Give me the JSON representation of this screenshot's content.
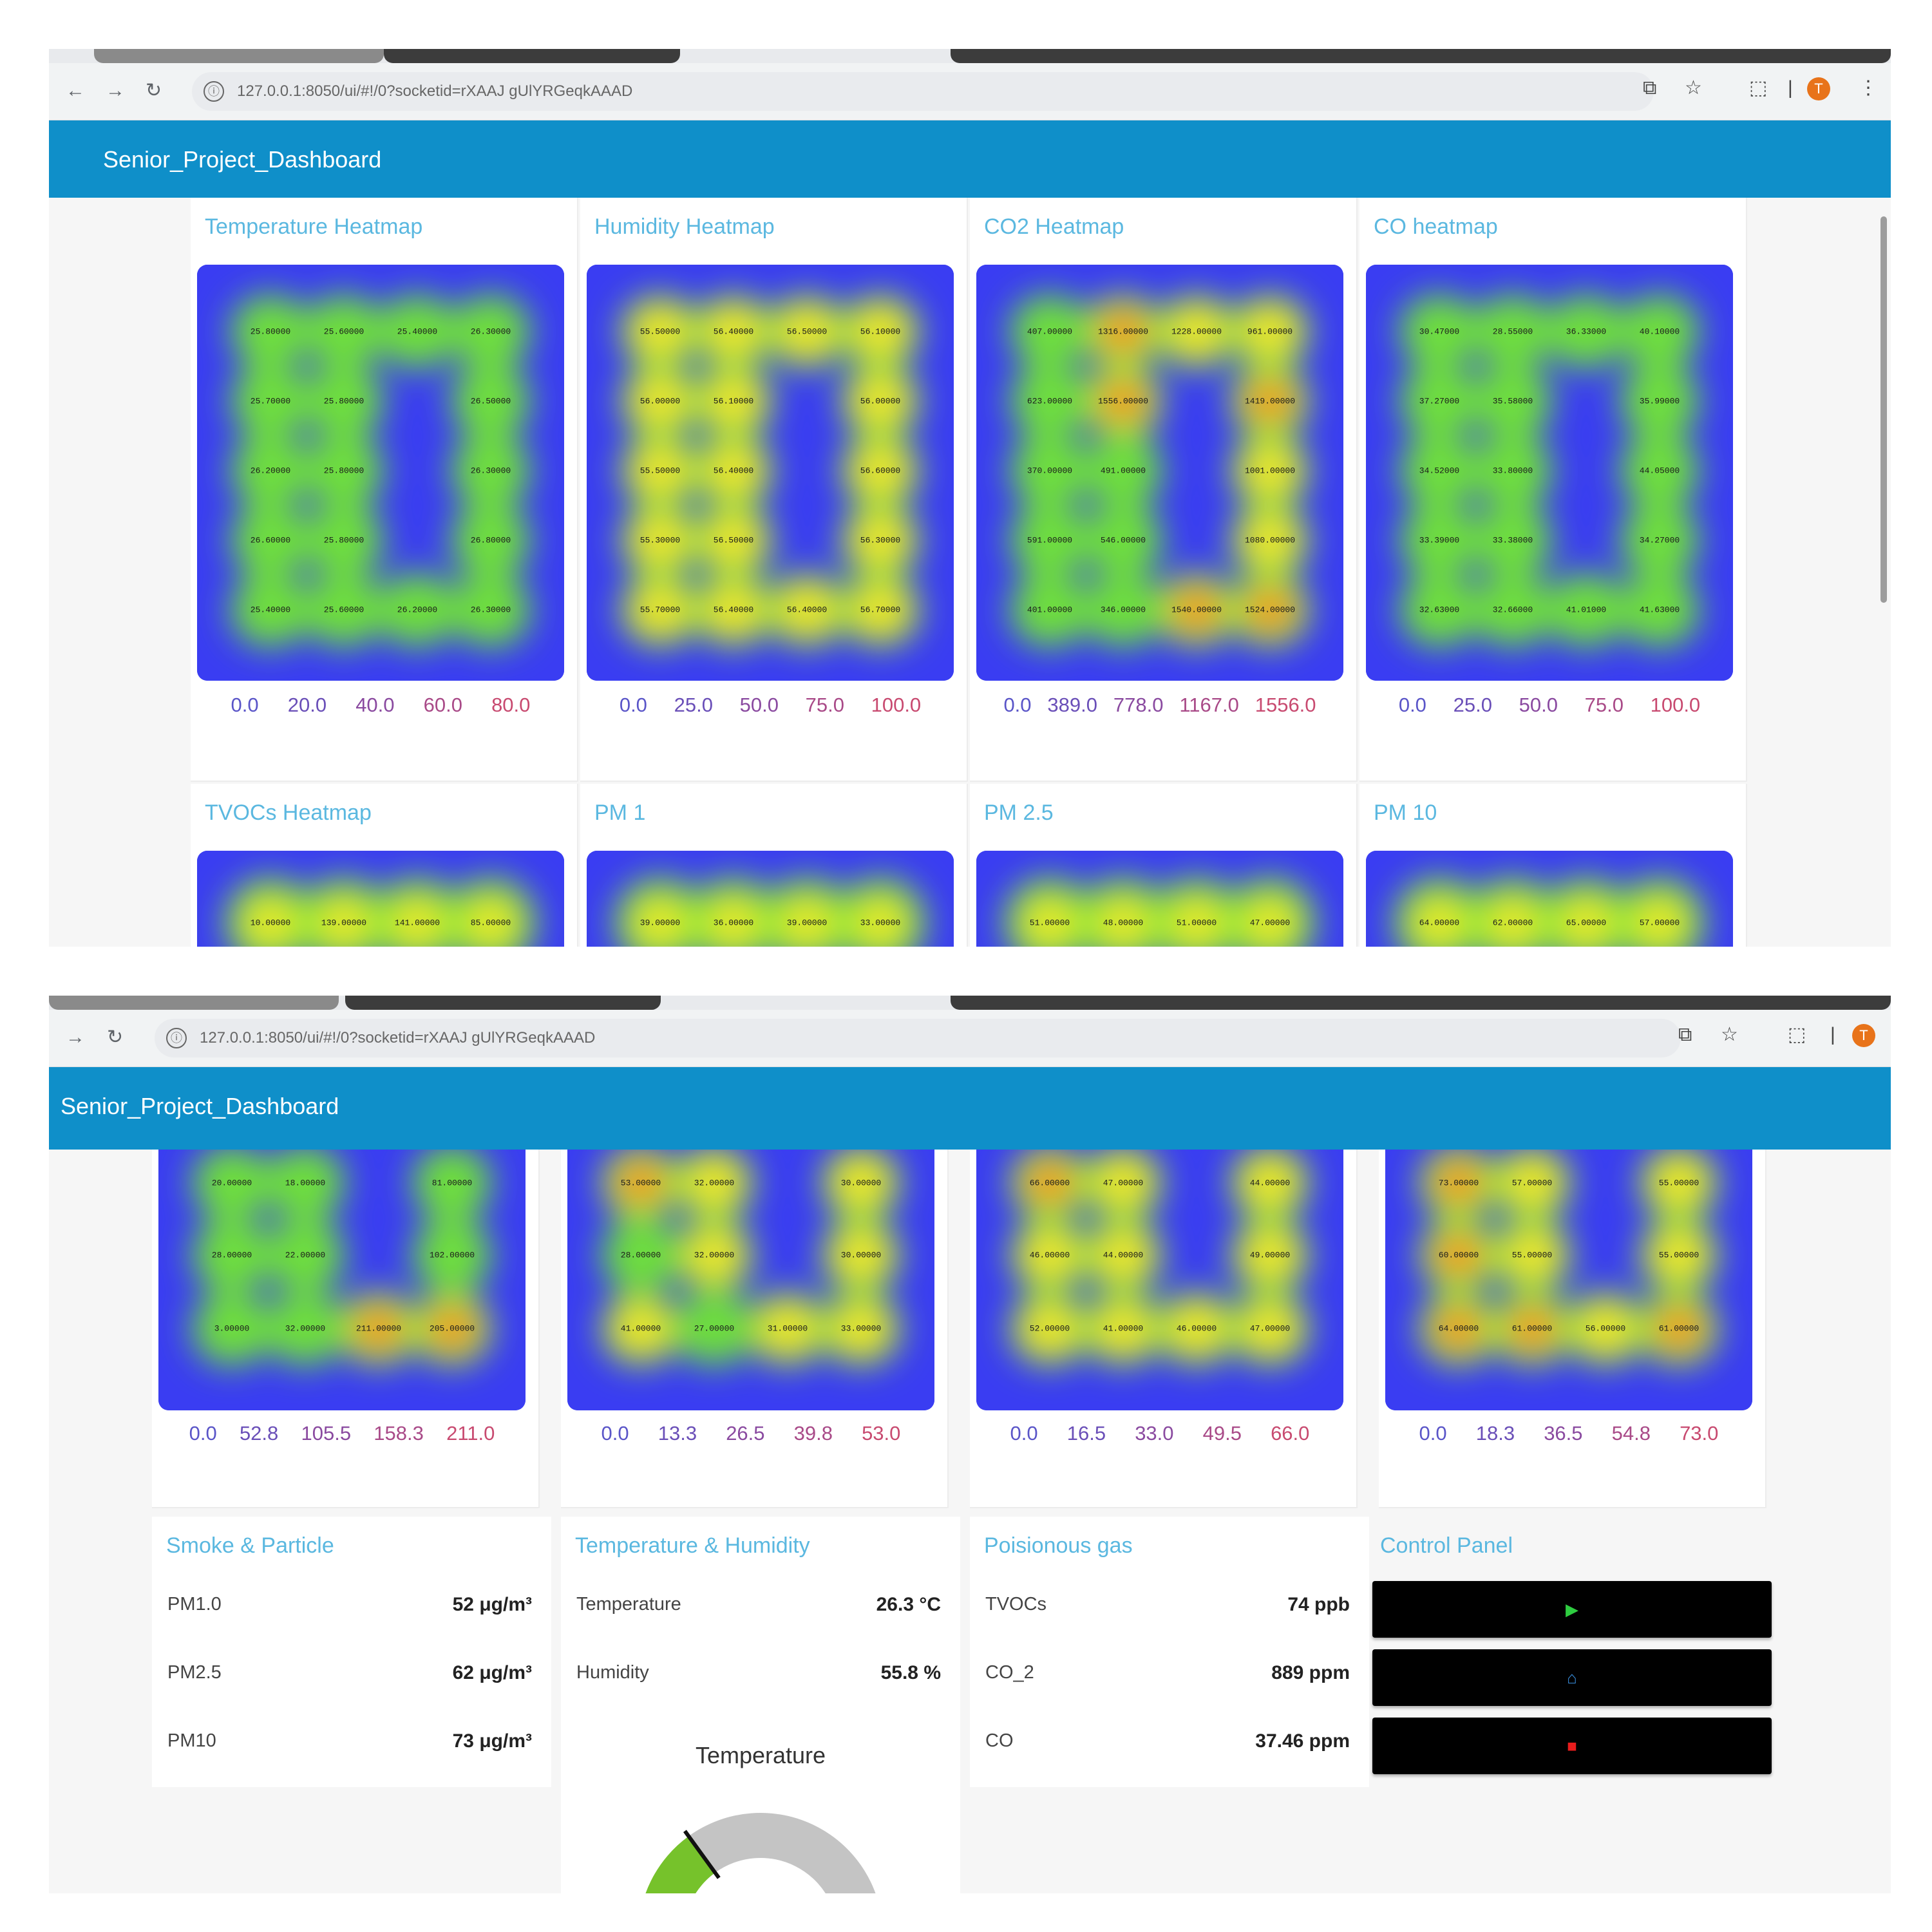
{
  "colors": {
    "appbar": "#0f8fc9",
    "card_title": "#5bb8e0",
    "heat_low": "#3a3df2",
    "heat_mid": "#7dea2f",
    "heat_high": "#f03a22",
    "play": "#2ecc40",
    "home": "#3a90e0",
    "stop": "#e81c1c",
    "gauge_fill": "#76c22b",
    "gauge_track": "#c4c4c4"
  },
  "browser": {
    "url_top": "127.0.0.1:8050/ui/#!/0?socketid=rXAAJ gUlYRGeqkAAAD",
    "url_bottom": "127.0.0.1:8050/ui/#!/0?socketid=rXAAJ gUlYRGeqkAAAD",
    "back_icon": "←",
    "forward_icon": "→",
    "reload_icon": "↻",
    "info_icon": "ⓘ",
    "cast_icon": "⧉",
    "star_icon": "☆",
    "extensions_icon": "⬚",
    "divider": "|",
    "menu_icon": "⋮",
    "profile_letter": "T"
  },
  "app": {
    "title": "Senior_Project_Dashboard"
  },
  "heatmaps_top": [
    {
      "title": "Temperature Heatmap",
      "scale": [
        "0.0",
        "20.0",
        "40.0",
        "60.0",
        "80.0"
      ],
      "labels": [
        [
          "25.80000",
          "25.60000",
          "25.40000",
          "26.30000"
        ],
        [
          "25.70000",
          "25.80000",
          "",
          "26.50000"
        ],
        [
          "26.20000",
          "25.80000",
          "",
          "26.30000"
        ],
        [
          "26.60000",
          "25.80000",
          "",
          "26.80000"
        ],
        [
          "25.40000",
          "25.60000",
          "26.20000",
          "26.30000"
        ]
      ]
    },
    {
      "title": "Humidity Heatmap",
      "scale": [
        "0.0",
        "25.0",
        "50.0",
        "75.0",
        "100.0"
      ],
      "labels": [
        [
          "55.50000",
          "56.40000",
          "56.50000",
          "56.10000"
        ],
        [
          "56.00000",
          "56.10000",
          "",
          "56.00000"
        ],
        [
          "55.50000",
          "56.40000",
          "",
          "56.60000"
        ],
        [
          "55.30000",
          "56.50000",
          "",
          "56.30000"
        ],
        [
          "55.70000",
          "56.40000",
          "56.40000",
          "56.70000"
        ]
      ]
    },
    {
      "title": "CO2 Heatmap",
      "scale": [
        "0.0",
        "389.0",
        "778.0",
        "1167.0",
        "1556.0"
      ],
      "labels": [
        [
          "407.00000",
          "1316.00000",
          "1228.00000",
          "961.00000"
        ],
        [
          "623.00000",
          "1556.00000",
          "",
          "1419.00000"
        ],
        [
          "370.00000",
          "491.00000",
          "",
          "1001.00000"
        ],
        [
          "591.00000",
          "546.00000",
          "",
          "1080.00000"
        ],
        [
          "401.00000",
          "346.00000",
          "1540.00000",
          "1524.00000"
        ]
      ]
    },
    {
      "title": "CO heatmap",
      "scale": [
        "0.0",
        "25.0",
        "50.0",
        "75.0",
        "100.0"
      ],
      "labels": [
        [
          "30.47000",
          "28.55000",
          "36.33000",
          "40.10000"
        ],
        [
          "37.27000",
          "35.58000",
          "",
          "35.99000"
        ],
        [
          "34.52000",
          "33.80000",
          "",
          "44.05000"
        ],
        [
          "33.39000",
          "33.38000",
          "",
          "34.27000"
        ],
        [
          "32.63000",
          "32.66000",
          "41.01000",
          "41.63000"
        ]
      ]
    }
  ],
  "heatmaps_second_row": [
    {
      "title": "TVOCs Heatmap",
      "row1": [
        "10.00000",
        "139.00000",
        "141.00000",
        "85.00000"
      ]
    },
    {
      "title": "PM 1",
      "row1": [
        "39.00000",
        "36.00000",
        "39.00000",
        "33.00000"
      ]
    },
    {
      "title": "PM 2.5",
      "row1": [
        "51.00000",
        "48.00000",
        "51.00000",
        "47.00000"
      ]
    },
    {
      "title": "PM 10",
      "row1": [
        "64.00000",
        "62.00000",
        "65.00000",
        "57.00000"
      ]
    }
  ],
  "heatmaps_bottom": [
    {
      "scale": [
        "0.0",
        "52.8",
        "105.5",
        "158.3",
        "211.0"
      ],
      "labels": [
        [
          "20.00000",
          "18.00000",
          "",
          "81.00000"
        ],
        [
          "28.00000",
          "22.00000",
          "",
          "102.00000"
        ],
        [
          "3.00000",
          "32.00000",
          "211.00000",
          "205.00000"
        ]
      ]
    },
    {
      "scale": [
        "0.0",
        "13.3",
        "26.5",
        "39.8",
        "53.0"
      ],
      "labels": [
        [
          "53.00000",
          "32.00000",
          "",
          "30.00000"
        ],
        [
          "28.00000",
          "32.00000",
          "",
          "30.00000"
        ],
        [
          "41.00000",
          "27.00000",
          "31.00000",
          "33.00000"
        ]
      ]
    },
    {
      "scale": [
        "0.0",
        "16.5",
        "33.0",
        "49.5",
        "66.0"
      ],
      "labels": [
        [
          "66.00000",
          "47.00000",
          "",
          "44.00000"
        ],
        [
          "46.00000",
          "44.00000",
          "",
          "49.00000"
        ],
        [
          "52.00000",
          "41.00000",
          "46.00000",
          "47.00000"
        ]
      ]
    },
    {
      "scale": [
        "0.0",
        "18.3",
        "36.5",
        "54.8",
        "73.0"
      ],
      "labels": [
        [
          "73.00000",
          "57.00000",
          "",
          "55.00000"
        ],
        [
          "60.00000",
          "55.00000",
          "",
          "55.00000"
        ],
        [
          "64.00000",
          "61.00000",
          "56.00000",
          "61.00000"
        ]
      ]
    }
  ],
  "smoke": {
    "title": "Smoke & Particle",
    "rows": [
      {
        "label": "PM1.0",
        "value": "52 μg/m³"
      },
      {
        "label": "PM2.5",
        "value": "62 μg/m³"
      },
      {
        "label": "PM10",
        "value": "73 μg/m³"
      }
    ]
  },
  "temphum": {
    "title": "Temperature & Humidity",
    "rows": [
      {
        "label": "Temperature",
        "value": "26.3 °C"
      },
      {
        "label": "Humidity",
        "value": "55.8 %"
      }
    ],
    "gauge_title": "Temperature",
    "gauge_fraction": 0.3
  },
  "gas": {
    "title": "Poisionous gas",
    "rows": [
      {
        "label": "TVOCs",
        "value": "74 ppb"
      },
      {
        "label": "CO_2",
        "value": "889 ppm"
      },
      {
        "label": "CO",
        "value": "37.46 ppm"
      }
    ]
  },
  "control": {
    "title": "Control Panel",
    "buttons": [
      {
        "icon": "play-icon",
        "glyph": "▶"
      },
      {
        "icon": "home-icon",
        "glyph": "⌂"
      },
      {
        "icon": "stop-icon",
        "glyph": "■"
      }
    ]
  }
}
